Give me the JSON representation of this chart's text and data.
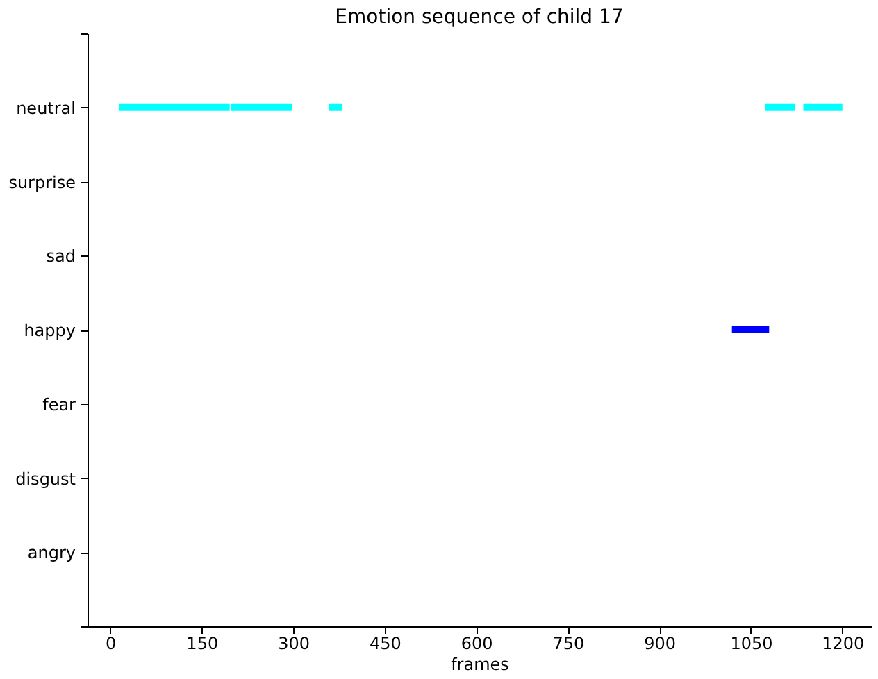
{
  "chart_data": {
    "type": "bar",
    "orientation": "horizontal",
    "title": "Emotion sequence of child 17",
    "xlabel": "frames",
    "categories": [
      null,
      "neutral",
      "surprise",
      "sad",
      "happy",
      "fear",
      "disgust",
      "angry",
      null
    ],
    "series": [
      {
        "color": "#00ffff",
        "base": [
          null,
          15,
          null,
          null,
          null,
          null,
          null,
          null,
          null
        ],
        "values": [
          null,
          181,
          null,
          null,
          null,
          null,
          null,
          null,
          null
        ]
      },
      {
        "color": "#00ffff",
        "base": [
          null,
          198,
          null,
          null,
          null,
          null,
          null,
          null,
          null
        ],
        "values": [
          null,
          100,
          null,
          null,
          null,
          null,
          null,
          null,
          null
        ]
      },
      {
        "color": "#00ffff",
        "base": [
          null,
          359,
          null,
          null,
          null,
          null,
          null,
          null,
          null
        ],
        "values": [
          null,
          21,
          null,
          null,
          null,
          null,
          null,
          null,
          null
        ]
      },
      {
        "color": "#00ffff",
        "base": [
          null,
          1073,
          null,
          null,
          null,
          null,
          null,
          null,
          null
        ],
        "values": [
          null,
          50,
          null,
          null,
          null,
          null,
          null,
          null,
          null
        ]
      },
      {
        "color": "#00ffff",
        "base": [
          null,
          1136,
          null,
          null,
          null,
          null,
          null,
          null,
          null
        ],
        "values": [
          null,
          64,
          null,
          null,
          null,
          null,
          null,
          null,
          null
        ]
      },
      {
        "color": "#0000ff",
        "base": [
          null,
          null,
          null,
          null,
          1019,
          null,
          null,
          null,
          null
        ],
        "values": [
          null,
          null,
          null,
          null,
          61,
          null,
          null,
          null,
          null
        ]
      }
    ],
    "xlim": [
      -37,
      1247
    ],
    "xticks": [
      0,
      150,
      300,
      450,
      600,
      750,
      900,
      1050,
      1200
    ],
    "grid": false
  }
}
